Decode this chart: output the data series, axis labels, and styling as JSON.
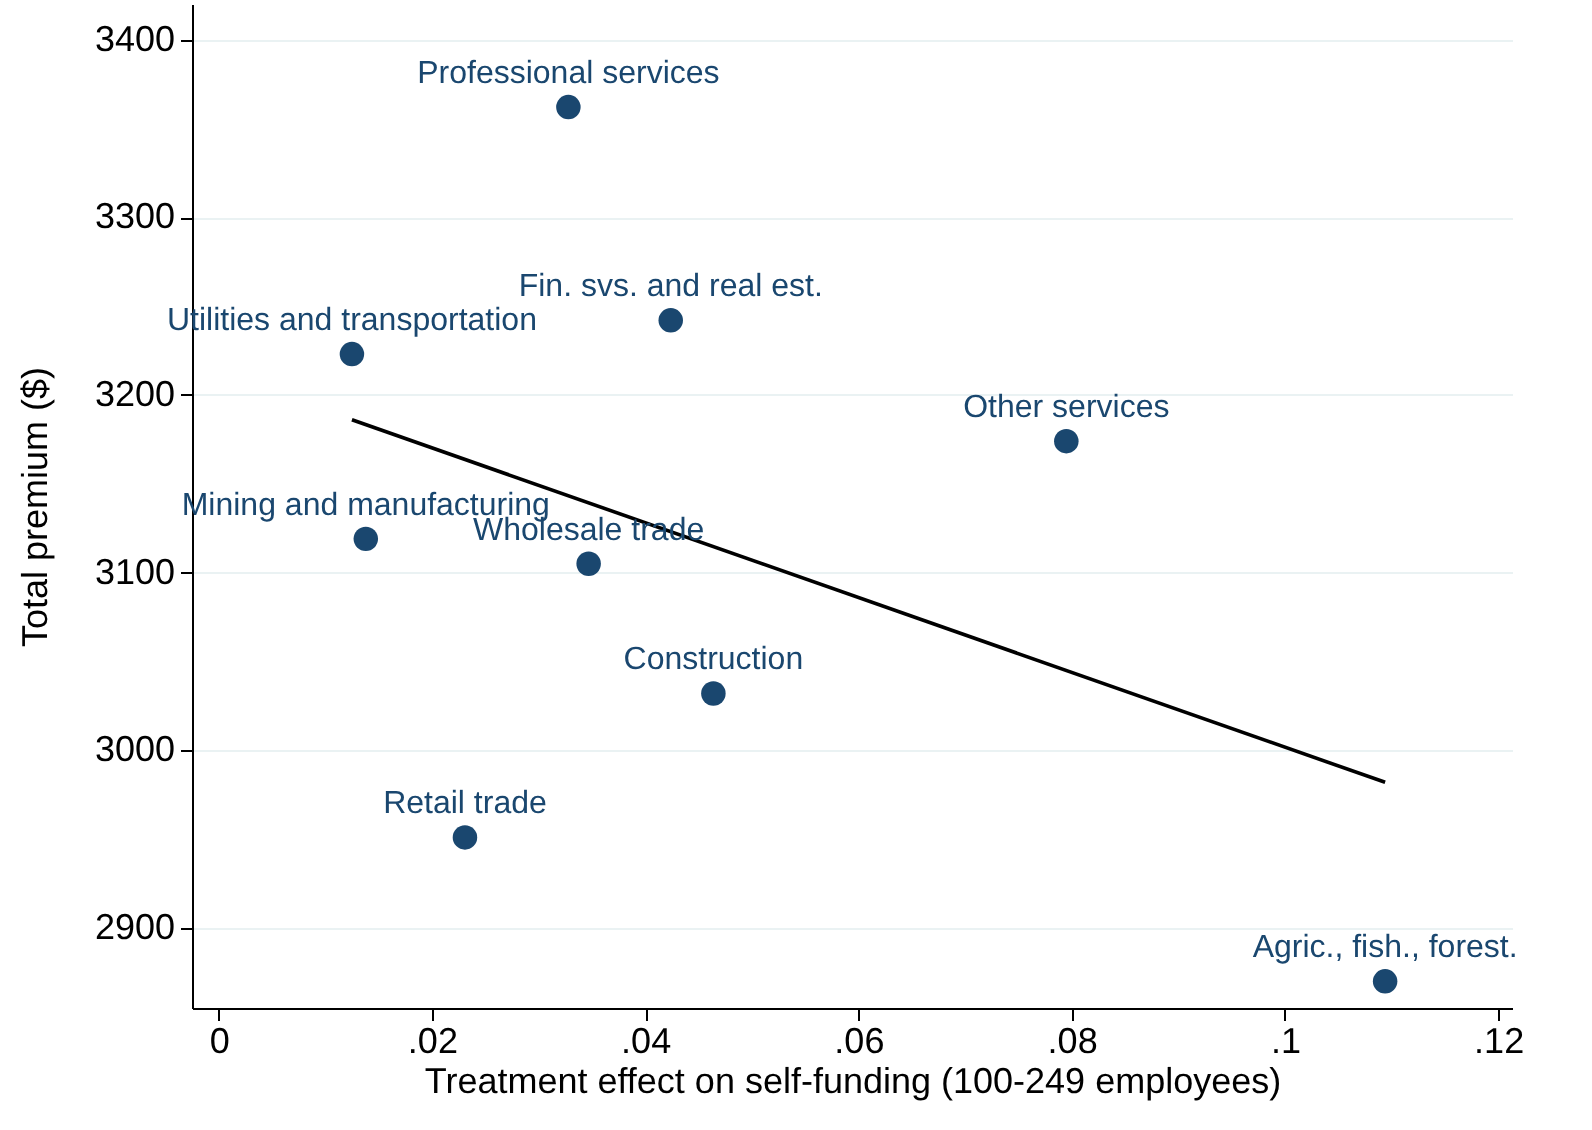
{
  "chart_data": {
    "type": "scatter",
    "xlabel": "Treatment effect on self-funding (100-249 employees)",
    "ylabel": "Total premium ($)",
    "xlim": [
      -0.0025,
      0.1213
    ],
    "ylim": [
      2855,
      3420
    ],
    "xticks": [
      {
        "value": 0,
        "label": "0"
      },
      {
        "value": 0.02,
        "label": ".02"
      },
      {
        "value": 0.04,
        "label": ".04"
      },
      {
        "value": 0.06,
        "label": ".06"
      },
      {
        "value": 0.08,
        "label": ".08"
      },
      {
        "value": 0.1,
        "label": ".1"
      },
      {
        "value": 0.12,
        "label": ".12"
      }
    ],
    "yticks": [
      2900,
      3000,
      3100,
      3200,
      3300,
      3400
    ],
    "grid": "y",
    "series": [
      {
        "marker": "circle",
        "color": "#1a476f",
        "x": [
          0.0328,
          0.0424,
          0.0125,
          0.0138,
          0.0347,
          0.0464,
          0.0231,
          0.0795,
          0.1094
        ],
        "values": [
          3362,
          3242,
          3223,
          3119,
          3105,
          3032,
          2951,
          3174,
          2870
        ]
      },
      {
        "type": "line",
        "marker": "none",
        "color": "#000000",
        "x": [
          0.0125,
          0.1094
        ],
        "values": [
          3186,
          2982
        ]
      }
    ],
    "annotations": [
      {
        "text": "Professional services",
        "x": 0.0328,
        "y": 3362
      },
      {
        "text": "Fin. svs. and real est.",
        "x": 0.0424,
        "y": 3242
      },
      {
        "text": "Utilities and transportation",
        "x": 0.0125,
        "y": 3223
      },
      {
        "text": "Mining and manufacturing",
        "x": 0.0138,
        "y": 3119
      },
      {
        "text": "Wholesale trade",
        "x": 0.0347,
        "y": 3105
      },
      {
        "text": "Construction",
        "x": 0.0464,
        "y": 3032
      },
      {
        "text": "Retail trade",
        "x": 0.0231,
        "y": 2951
      },
      {
        "text": "Other services",
        "x": 0.0795,
        "y": 3174
      },
      {
        "text": "Agric., fish., forest.",
        "x": 0.1094,
        "y": 2870
      }
    ]
  }
}
